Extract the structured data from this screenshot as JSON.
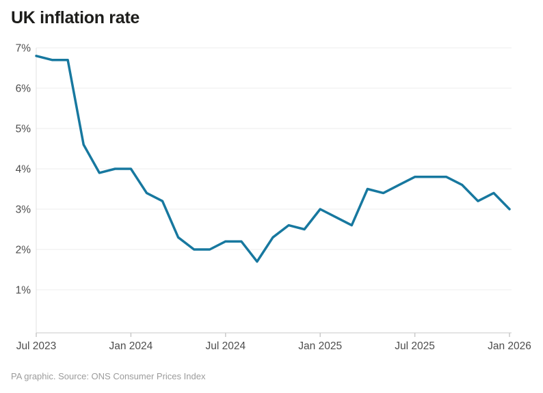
{
  "title": "UK inflation rate",
  "source": "PA graphic. Source: ONS Consumer Prices Index",
  "colors": {
    "line": "#17789f",
    "grid": "#ededed",
    "axis_line": "#c9c9c9",
    "axis_border": "#e0e0e0",
    "tick": "#c9c9c9",
    "label": "#4d4d4d",
    "title": "#1d1d1b",
    "source": "#9b9b9b",
    "background": "#ffffff"
  },
  "chart_data": {
    "type": "line",
    "title": "UK inflation rate",
    "series_name": "UK CPI inflation rate (%)",
    "x": [
      "Jul 2023",
      "Aug 2023",
      "Sep 2023",
      "Oct 2023",
      "Nov 2023",
      "Dec 2023",
      "Jan 2024",
      "Feb 2024",
      "Mar 2024",
      "Apr 2024",
      "May 2024",
      "Jun 2024",
      "Jul 2024",
      "Aug 2024",
      "Sep 2024",
      "Oct 2024",
      "Nov 2024",
      "Dec 2024",
      "Jan 2025",
      "Feb 2025",
      "Mar 2025",
      "Apr 2025",
      "May 2025",
      "Jun 2025",
      "Jul 2025",
      "Aug 2025",
      "Sep 2025",
      "Oct 2025",
      "Nov 2025",
      "Dec 2025",
      "Jan 2026"
    ],
    "values": [
      6.8,
      6.7,
      6.7,
      4.6,
      3.9,
      4.0,
      4.0,
      3.4,
      3.2,
      2.3,
      2.0,
      2.0,
      2.2,
      2.2,
      1.7,
      2.3,
      2.6,
      2.5,
      3.0,
      2.8,
      2.6,
      3.5,
      3.4,
      3.6,
      3.8,
      3.8,
      3.8,
      3.6,
      3.2,
      3.4,
      3.0
    ],
    "yticks": [
      7,
      6,
      5,
      4,
      3,
      2,
      1
    ],
    "ytick_labels": [
      "7%",
      "6%",
      "5%",
      "4%",
      "3%",
      "2%",
      "1%"
    ],
    "ylim": [
      0,
      7
    ],
    "xtick_indices": [
      0,
      6,
      12,
      18,
      24,
      30
    ],
    "xtick_labels": [
      "Jul 2023",
      "Jan 2024",
      "Jul 2024",
      "Jan 2025",
      "Jul 2025",
      "Jan 2026"
    ],
    "grid": "horizontal",
    "legend": "none"
  }
}
